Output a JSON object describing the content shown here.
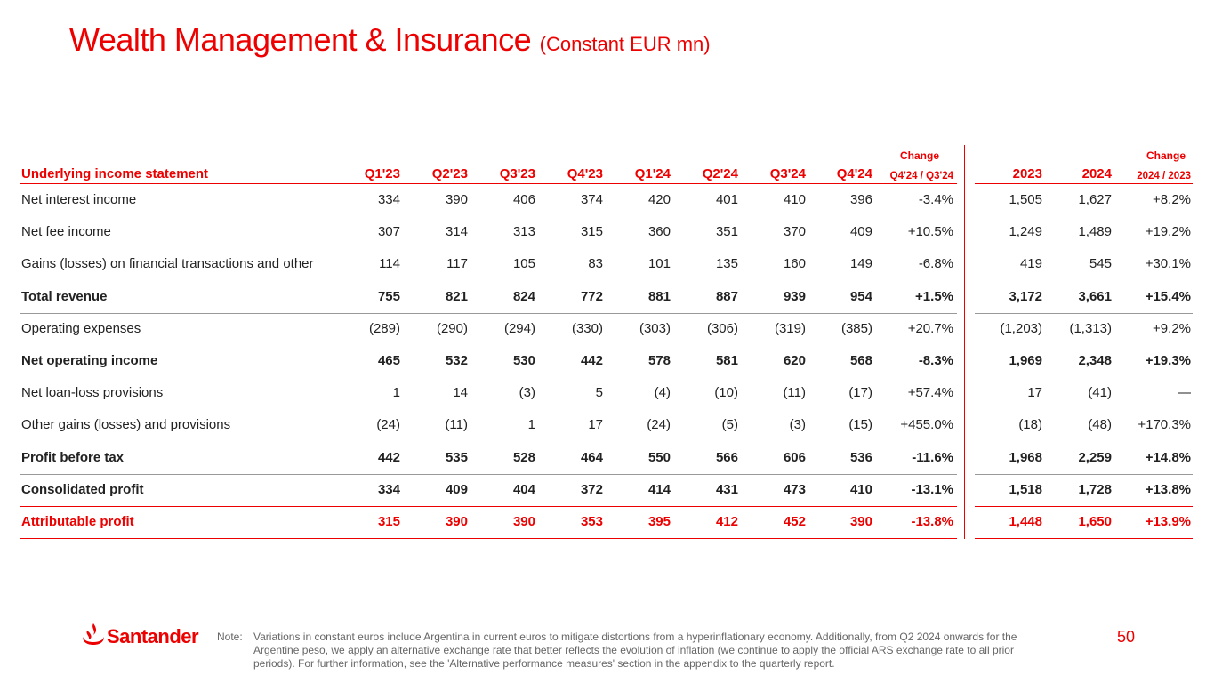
{
  "header": {
    "title": "Wealth Management & Insurance",
    "subtitle": "(Constant EUR mn)"
  },
  "table": {
    "group_headers": [
      "Change",
      "Change"
    ],
    "columns": [
      "Underlying income statement",
      "Q1'23",
      "Q2'23",
      "Q3'23",
      "Q4'23",
      "Q1'24",
      "Q2'24",
      "Q3'24",
      "Q4'24",
      "Q4'24 / Q3'24",
      "2023",
      "2024",
      "2024 / 2023"
    ],
    "rows": [
      [
        "Net interest income",
        "334",
        "390",
        "406",
        "374",
        "420",
        "401",
        "410",
        "396",
        "-3.4%",
        "1,505",
        "1,627",
        "+8.2%"
      ],
      [
        "Net fee income",
        "307",
        "314",
        "313",
        "315",
        "360",
        "351",
        "370",
        "409",
        "+10.5%",
        "1,249",
        "1,489",
        "+19.2%"
      ],
      [
        "Gains (losses) on financial transactions and other",
        "114",
        "117",
        "105",
        "83",
        "101",
        "135",
        "160",
        "149",
        "-6.8%",
        "419",
        "545",
        "+30.1%"
      ],
      [
        "Total revenue",
        "755",
        "821",
        "824",
        "772",
        "881",
        "887",
        "939",
        "954",
        "+1.5%",
        "3,172",
        "3,661",
        "+15.4%"
      ],
      [
        "Operating expenses",
        "(289)",
        "(290)",
        "(294)",
        "(330)",
        "(303)",
        "(306)",
        "(319)",
        "(385)",
        "+20.7%",
        "(1,203)",
        "(1,313)",
        "+9.2%"
      ],
      [
        "Net operating income",
        "465",
        "532",
        "530",
        "442",
        "578",
        "581",
        "620",
        "568",
        "-8.3%",
        "1,969",
        "2,348",
        "+19.3%"
      ],
      [
        "Net loan-loss provisions",
        "1",
        "14",
        "(3)",
        "5",
        "(4)",
        "(10)",
        "(11)",
        "(17)",
        "+57.4%",
        "17",
        "(41)",
        "—"
      ],
      [
        "Other gains (losses) and provisions",
        "(24)",
        "(11)",
        "1",
        "17",
        "(24)",
        "(5)",
        "(3)",
        "(15)",
        "+455.0%",
        "(18)",
        "(48)",
        "+170.3%"
      ],
      [
        "Profit before tax",
        "442",
        "535",
        "528",
        "464",
        "550",
        "566",
        "606",
        "536",
        "-11.6%",
        "1,968",
        "2,259",
        "+14.8%"
      ],
      [
        "Consolidated profit",
        "334",
        "409",
        "404",
        "372",
        "414",
        "431",
        "473",
        "410",
        "-13.1%",
        "1,518",
        "1,728",
        "+13.8%"
      ],
      [
        "Attributable profit",
        "315",
        "390",
        "390",
        "353",
        "395",
        "412",
        "452",
        "390",
        "-13.8%",
        "1,448",
        "1,650",
        "+13.9%"
      ]
    ]
  },
  "footer": {
    "logo": "Santander",
    "note_label": "Note:",
    "note": "Variations in constant euros include Argentina in current euros to mitigate distortions from a hyperinflationary economy. Additionally, from Q2 2024 onwards for the Argentine peso, we apply an alternative exchange rate that better reflects the evolution of inflation (we continue to apply the official ARS exchange rate to all prior periods). For further information, see the 'Alternative performance measures' section in the appendix to the quarterly report.",
    "page": "50"
  }
}
